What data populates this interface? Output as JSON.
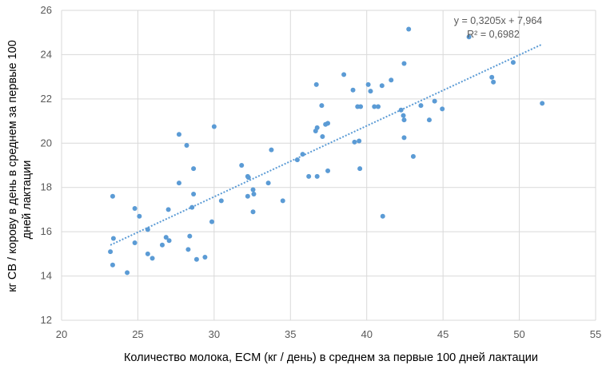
{
  "chart_data": {
    "type": "scatter",
    "title": "",
    "xlabel": "Количество молока, ECM (кг / день) в среднем за первые 100 дней лактации",
    "ylabel_lines": [
      "кг СВ / корову в день в среднем за первые 100",
      "дней лактации"
    ],
    "xlim": [
      20,
      55
    ],
    "ylim": [
      12,
      26
    ],
    "xticks": [
      20,
      25,
      30,
      35,
      40,
      45,
      50,
      55
    ],
    "yticks": [
      12,
      14,
      16,
      18,
      20,
      22,
      24,
      26
    ],
    "grid": true,
    "point_color": "#5B9BD5",
    "trendline": {
      "slope": 0.3205,
      "intercept": 7.964,
      "x_range": [
        23.2,
        51.5
      ],
      "equation": "y = 0,3205x + 7,964",
      "r2": "R² = 0,6982"
    },
    "points": [
      [
        23.35,
        17.6
      ],
      [
        23.4,
        15.7
      ],
      [
        23.2,
        15.1
      ],
      [
        23.35,
        14.5
      ],
      [
        24.3,
        14.15
      ],
      [
        24.8,
        17.05
      ],
      [
        25.1,
        16.7
      ],
      [
        24.8,
        15.5
      ],
      [
        25.65,
        16.1
      ],
      [
        25.65,
        15.0
      ],
      [
        25.95,
        14.8
      ],
      [
        26.6,
        15.4
      ],
      [
        26.85,
        15.75
      ],
      [
        27.05,
        15.6
      ],
      [
        27.0,
        17.0
      ],
      [
        27.7,
        18.2
      ],
      [
        27.7,
        20.4
      ],
      [
        28.2,
        19.9
      ],
      [
        28.65,
        18.85
      ],
      [
        28.65,
        17.7
      ],
      [
        28.55,
        17.1
      ],
      [
        28.4,
        15.8
      ],
      [
        28.3,
        15.2
      ],
      [
        28.85,
        14.75
      ],
      [
        29.4,
        14.85
      ],
      [
        29.85,
        16.45
      ],
      [
        30.0,
        20.75
      ],
      [
        30.47,
        17.4
      ],
      [
        31.8,
        19.0
      ],
      [
        32.2,
        18.5
      ],
      [
        32.25,
        18.45
      ],
      [
        32.2,
        17.6
      ],
      [
        32.6,
        17.7
      ],
      [
        32.55,
        17.9
      ],
      [
        32.55,
        16.9
      ],
      [
        33.55,
        18.2
      ],
      [
        33.75,
        19.7
      ],
      [
        34.5,
        17.4
      ],
      [
        35.45,
        19.25
      ],
      [
        35.8,
        19.5
      ],
      [
        36.2,
        18.5
      ],
      [
        36.7,
        22.65
      ],
      [
        36.65,
        20.55
      ],
      [
        36.75,
        20.7
      ],
      [
        36.75,
        18.5
      ],
      [
        37.05,
        21.7
      ],
      [
        37.1,
        20.3
      ],
      [
        37.3,
        20.85
      ],
      [
        37.45,
        20.9
      ],
      [
        37.45,
        18.75
      ],
      [
        38.5,
        23.1
      ],
      [
        39.1,
        22.4
      ],
      [
        39.2,
        20.05
      ],
      [
        39.4,
        21.65
      ],
      [
        39.5,
        20.1
      ],
      [
        39.6,
        21.65
      ],
      [
        39.55,
        18.85
      ],
      [
        40.1,
        22.65
      ],
      [
        40.25,
        22.35
      ],
      [
        40.5,
        21.65
      ],
      [
        40.75,
        21.65
      ],
      [
        41.0,
        22.6
      ],
      [
        41.05,
        16.7
      ],
      [
        41.6,
        22.85
      ],
      [
        42.25,
        21.5
      ],
      [
        42.4,
        21.25
      ],
      [
        42.45,
        21.05
      ],
      [
        42.45,
        20.25
      ],
      [
        42.45,
        23.6
      ],
      [
        42.75,
        25.15
      ],
      [
        43.05,
        19.4
      ],
      [
        43.55,
        21.7
      ],
      [
        44.1,
        21.05
      ],
      [
        44.45,
        21.9
      ],
      [
        44.95,
        21.55
      ],
      [
        46.7,
        24.8
      ],
      [
        48.2,
        22.98
      ],
      [
        48.3,
        22.76
      ],
      [
        49.6,
        23.65
      ],
      [
        51.5,
        21.8
      ]
    ]
  }
}
